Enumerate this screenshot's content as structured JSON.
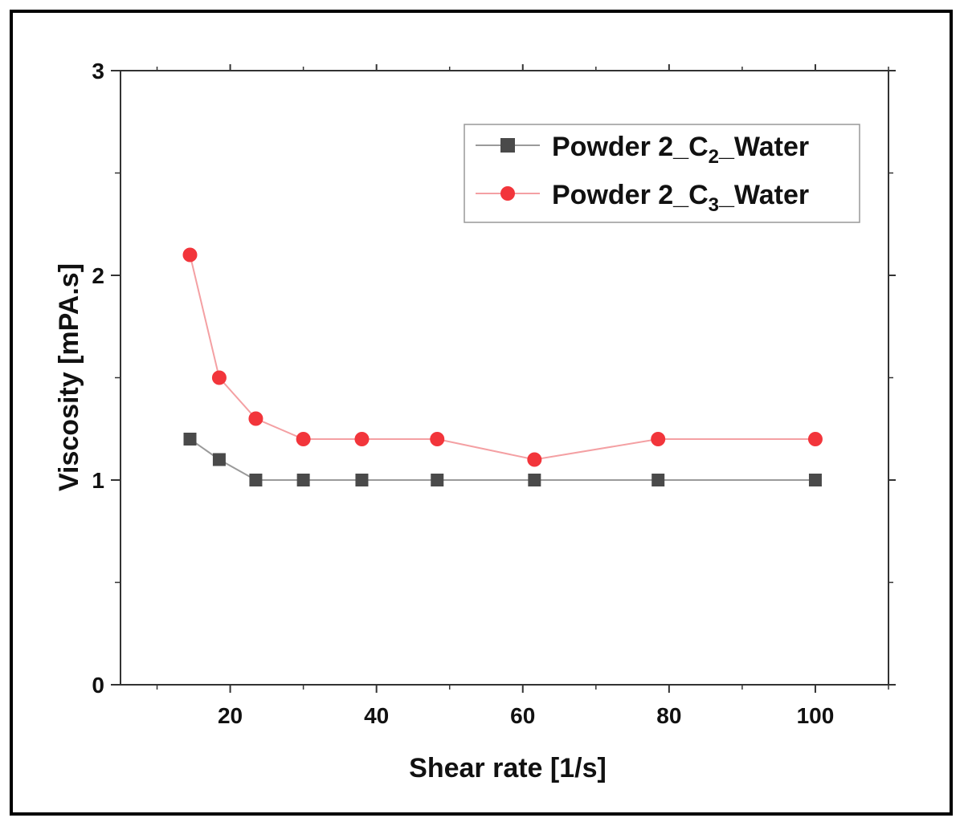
{
  "chart_data": {
    "type": "line",
    "title": "",
    "xlabel": "Shear rate [1/s]",
    "ylabel": "Viscosity [mPA.s]",
    "xlim": [
      5,
      110
    ],
    "ylim": [
      0,
      3
    ],
    "x_ticks": [
      20,
      40,
      60,
      80,
      100
    ],
    "x_tick_labels": [
      "20",
      "40",
      "60",
      "80",
      "100"
    ],
    "y_ticks": [
      0,
      1,
      2,
      3
    ],
    "y_tick_labels": [
      "0",
      "1",
      "2",
      "3"
    ],
    "grid": false,
    "legend_position": "top-right",
    "series": [
      {
        "name": "Powder 2_C2_Water",
        "legend": {
          "prefix": "Powder 2_C",
          "sub": "2",
          "suffix": "_Water"
        },
        "marker": "square",
        "color": "#4a4a4a",
        "line_color": "#9a9a9a",
        "x": [
          14.5,
          18.5,
          23.5,
          30,
          38,
          48.3,
          61.6,
          78.5,
          100
        ],
        "values": [
          1.2,
          1.1,
          1.0,
          1.0,
          1.0,
          1.0,
          1.0,
          1.0,
          1.0
        ]
      },
      {
        "name": "Powder 2_C3_Water",
        "legend": {
          "prefix": "Powder 2_C",
          "sub": "3",
          "suffix": "_Water"
        },
        "marker": "circle",
        "color": "#f2353b",
        "line_color": "#f4a0a3",
        "x": [
          14.5,
          18.5,
          23.5,
          30,
          38,
          48.3,
          61.6,
          78.5,
          100
        ],
        "values": [
          2.1,
          1.5,
          1.3,
          1.2,
          1.2,
          1.2,
          1.1,
          1.2,
          1.2
        ]
      }
    ]
  }
}
